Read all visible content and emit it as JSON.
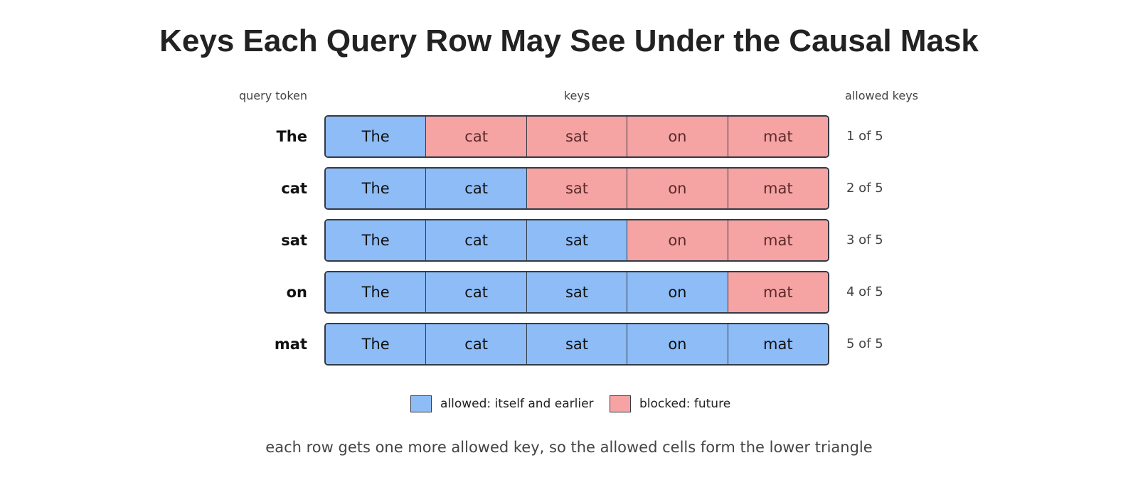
{
  "title": "Keys Each Query Row May See Under the Causal Mask",
  "column_headers": {
    "query": "query token",
    "keys": "keys",
    "allowed": "allowed keys"
  },
  "tokens": [
    "The",
    "cat",
    "sat",
    "on",
    "mat"
  ],
  "rows": [
    {
      "query": "The",
      "count": "1 of 5",
      "cells": [
        {
          "label": "The",
          "state": "allowed"
        },
        {
          "label": "cat",
          "state": "blocked"
        },
        {
          "label": "sat",
          "state": "blocked"
        },
        {
          "label": "on",
          "state": "blocked"
        },
        {
          "label": "mat",
          "state": "blocked"
        }
      ]
    },
    {
      "query": "cat",
      "count": "2 of 5",
      "cells": [
        {
          "label": "The",
          "state": "allowed"
        },
        {
          "label": "cat",
          "state": "allowed"
        },
        {
          "label": "sat",
          "state": "blocked"
        },
        {
          "label": "on",
          "state": "blocked"
        },
        {
          "label": "mat",
          "state": "blocked"
        }
      ]
    },
    {
      "query": "sat",
      "count": "3 of 5",
      "cells": [
        {
          "label": "The",
          "state": "allowed"
        },
        {
          "label": "cat",
          "state": "allowed"
        },
        {
          "label": "sat",
          "state": "allowed"
        },
        {
          "label": "on",
          "state": "blocked"
        },
        {
          "label": "mat",
          "state": "blocked"
        }
      ]
    },
    {
      "query": "on",
      "count": "4 of 5",
      "cells": [
        {
          "label": "The",
          "state": "allowed"
        },
        {
          "label": "cat",
          "state": "allowed"
        },
        {
          "label": "sat",
          "state": "allowed"
        },
        {
          "label": "on",
          "state": "allowed"
        },
        {
          "label": "mat",
          "state": "blocked"
        }
      ]
    },
    {
      "query": "mat",
      "count": "5 of 5",
      "cells": [
        {
          "label": "The",
          "state": "allowed"
        },
        {
          "label": "cat",
          "state": "allowed"
        },
        {
          "label": "sat",
          "state": "allowed"
        },
        {
          "label": "on",
          "state": "allowed"
        },
        {
          "label": "mat",
          "state": "allowed"
        }
      ]
    }
  ],
  "legend": {
    "allowed": "allowed: itself and earlier",
    "blocked": "blocked: future"
  },
  "caption": "each row gets one more allowed key, so the allowed cells form the lower triangle",
  "colors": {
    "allowed": "#8dbcf6",
    "blocked": "#f5a3a3",
    "border": "#333a44"
  }
}
